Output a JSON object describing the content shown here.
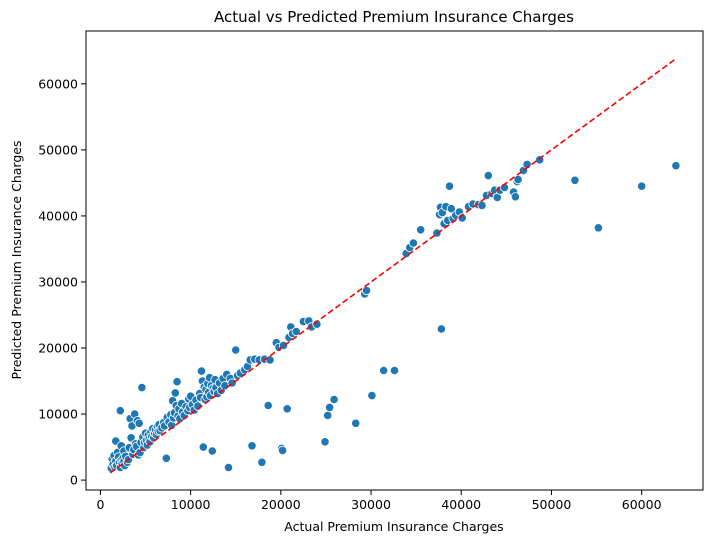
{
  "chart_data": {
    "type": "scatter",
    "title": "Actual vs Predicted Premium Insurance Charges",
    "xlabel": "Actual Premium Insurance Charges",
    "ylabel": "Predicted Premium Insurance Charges",
    "xlim": [
      -1600,
      66800
    ],
    "ylim": [
      -1500,
      68000
    ],
    "xticks": [
      0,
      10000,
      20000,
      30000,
      40000,
      50000,
      60000
    ],
    "yticks": [
      0,
      10000,
      20000,
      30000,
      40000,
      50000,
      60000
    ],
    "xtick_labels": [
      "0",
      "10000",
      "20000",
      "30000",
      "40000",
      "50000",
      "60000"
    ],
    "ytick_labels": [
      "0",
      "10000",
      "20000",
      "30000",
      "40000",
      "50000",
      "60000"
    ],
    "grid": false,
    "marker_color": "#1f77b4",
    "reference_line": {
      "style": "dashed",
      "color": "#ff0000",
      "from": [
        1100,
        1100
      ],
      "to": [
        63800,
        63800
      ]
    },
    "points": [
      [
        1200,
        1800
      ],
      [
        1300,
        3200
      ],
      [
        1400,
        2400
      ],
      [
        1500,
        3700
      ],
      [
        1600,
        2000
      ],
      [
        1700,
        2900
      ],
      [
        1800,
        2200
      ],
      [
        1700,
        5900
      ],
      [
        1900,
        4200
      ],
      [
        2000,
        3500
      ],
      [
        2100,
        2700
      ],
      [
        2200,
        1900
      ],
      [
        2300,
        3000
      ],
      [
        2400,
        2500
      ],
      [
        2500,
        3300
      ],
      [
        2600,
        2800
      ],
      [
        2700,
        2200
      ],
      [
        2200,
        10500
      ],
      [
        2300,
        5200
      ],
      [
        2600,
        4400
      ],
      [
        2800,
        3600
      ],
      [
        3000,
        2700
      ],
      [
        3100,
        3100
      ],
      [
        3200,
        4900
      ],
      [
        3300,
        9300
      ],
      [
        3400,
        6400
      ],
      [
        3500,
        8200
      ],
      [
        3600,
        3900
      ],
      [
        3700,
        4600
      ],
      [
        3800,
        10000
      ],
      [
        3900,
        5500
      ],
      [
        4000,
        5100
      ],
      [
        4100,
        9000
      ],
      [
        4200,
        3800
      ],
      [
        4300,
        8600
      ],
      [
        4400,
        4200
      ],
      [
        4500,
        5700
      ],
      [
        4600,
        14000
      ],
      [
        4700,
        6500
      ],
      [
        4800,
        4900
      ],
      [
        4900,
        5700
      ],
      [
        5000,
        7100
      ],
      [
        5100,
        6000
      ],
      [
        5200,
        5300
      ],
      [
        5300,
        6800
      ],
      [
        5400,
        6200
      ],
      [
        5500,
        5800
      ],
      [
        5600,
        7300
      ],
      [
        5700,
        6600
      ],
      [
        5800,
        7800
      ],
      [
        5900,
        6400
      ],
      [
        6000,
        7100
      ],
      [
        6100,
        7600
      ],
      [
        6200,
        6900
      ],
      [
        6300,
        8100
      ],
      [
        6400,
        7400
      ],
      [
        6500,
        8400
      ],
      [
        6600,
        7500
      ],
      [
        6800,
        7900
      ],
      [
        7000,
        8700
      ],
      [
        7100,
        8200
      ],
      [
        7300,
        3300
      ],
      [
        7400,
        9500
      ],
      [
        7600,
        8800
      ],
      [
        7800,
        9900
      ],
      [
        7900,
        8300
      ],
      [
        8000,
        12000
      ],
      [
        8100,
        9400
      ],
      [
        8200,
        10200
      ],
      [
        8300,
        13200
      ],
      [
        8400,
        11300
      ],
      [
        8500,
        14900
      ],
      [
        8600,
        9700
      ],
      [
        8700,
        10800
      ],
      [
        8800,
        9300
      ],
      [
        9000,
        11600
      ],
      [
        9100,
        10300
      ],
      [
        9300,
        9800
      ],
      [
        9500,
        11100
      ],
      [
        9700,
        10500
      ],
      [
        9800,
        12300
      ],
      [
        9900,
        11000
      ],
      [
        10000,
        12700
      ],
      [
        10200,
        11400
      ],
      [
        10400,
        10600
      ],
      [
        10600,
        12100
      ],
      [
        10800,
        11200
      ],
      [
        11000,
        13100
      ],
      [
        11100,
        12500
      ],
      [
        11200,
        16500
      ],
      [
        11300,
        15000
      ],
      [
        11400,
        5000
      ],
      [
        11500,
        14100
      ],
      [
        11600,
        12200
      ],
      [
        11700,
        13700
      ],
      [
        11800,
        12600
      ],
      [
        11900,
        14600
      ],
      [
        12000,
        13300
      ],
      [
        12100,
        15500
      ],
      [
        12200,
        12800
      ],
      [
        12300,
        14300
      ],
      [
        12400,
        4400
      ],
      [
        12500,
        13900
      ],
      [
        12600,
        13400
      ],
      [
        12700,
        15200
      ],
      [
        12800,
        14000
      ],
      [
        13000,
        13100
      ],
      [
        13200,
        14700
      ],
      [
        13400,
        13600
      ],
      [
        13600,
        15400
      ],
      [
        13800,
        14300
      ],
      [
        14000,
        16000
      ],
      [
        14200,
        1900
      ],
      [
        14400,
        15400
      ],
      [
        14600,
        14700
      ],
      [
        15000,
        19700
      ],
      [
        15200,
        15800
      ],
      [
        15500,
        16200
      ],
      [
        16000,
        16700
      ],
      [
        16300,
        17200
      ],
      [
        16600,
        18200
      ],
      [
        16800,
        5200
      ],
      [
        17100,
        18300
      ],
      [
        17600,
        18200
      ],
      [
        17900,
        2700
      ],
      [
        18200,
        18300
      ],
      [
        18600,
        11300
      ],
      [
        18800,
        18200
      ],
      [
        19500,
        20800
      ],
      [
        19800,
        20100
      ],
      [
        20100,
        4800
      ],
      [
        20200,
        4500
      ],
      [
        20300,
        20400
      ],
      [
        20700,
        10800
      ],
      [
        20900,
        21600
      ],
      [
        21100,
        23200
      ],
      [
        21300,
        22200
      ],
      [
        21700,
        22500
      ],
      [
        22500,
        24000
      ],
      [
        23100,
        24100
      ],
      [
        23400,
        23200
      ],
      [
        24000,
        23600
      ],
      [
        24900,
        5800
      ],
      [
        25200,
        9800
      ],
      [
        25400,
        11000
      ],
      [
        25900,
        12200
      ],
      [
        28300,
        8600
      ],
      [
        29300,
        28200
      ],
      [
        29500,
        28700
      ],
      [
        30100,
        12800
      ],
      [
        31400,
        16600
      ],
      [
        32600,
        16600
      ],
      [
        33900,
        34300
      ],
      [
        34300,
        35200
      ],
      [
        34700,
        35900
      ],
      [
        35500,
        37900
      ],
      [
        37300,
        37400
      ],
      [
        37600,
        40200
      ],
      [
        37700,
        41300
      ],
      [
        37800,
        22900
      ],
      [
        37900,
        40500
      ],
      [
        38100,
        38800
      ],
      [
        38300,
        41400
      ],
      [
        38500,
        39300
      ],
      [
        38700,
        44500
      ],
      [
        38900,
        41100
      ],
      [
        39100,
        39600
      ],
      [
        39400,
        40100
      ],
      [
        39800,
        40600
      ],
      [
        40100,
        39700
      ],
      [
        40800,
        41400
      ],
      [
        41300,
        41800
      ],
      [
        41900,
        41700
      ],
      [
        42300,
        41600
      ],
      [
        42800,
        43100
      ],
      [
        43000,
        46100
      ],
      [
        43400,
        43400
      ],
      [
        43700,
        43900
      ],
      [
        44000,
        42800
      ],
      [
        44300,
        43900
      ],
      [
        44800,
        44300
      ],
      [
        45800,
        43600
      ],
      [
        46000,
        42900
      ],
      [
        46200,
        45200
      ],
      [
        46300,
        45500
      ],
      [
        46900,
        46900
      ],
      [
        47300,
        47800
      ],
      [
        48700,
        48500
      ],
      [
        52600,
        45400
      ],
      [
        55200,
        38200
      ],
      [
        60000,
        44500
      ],
      [
        63800,
        47600
      ]
    ]
  }
}
